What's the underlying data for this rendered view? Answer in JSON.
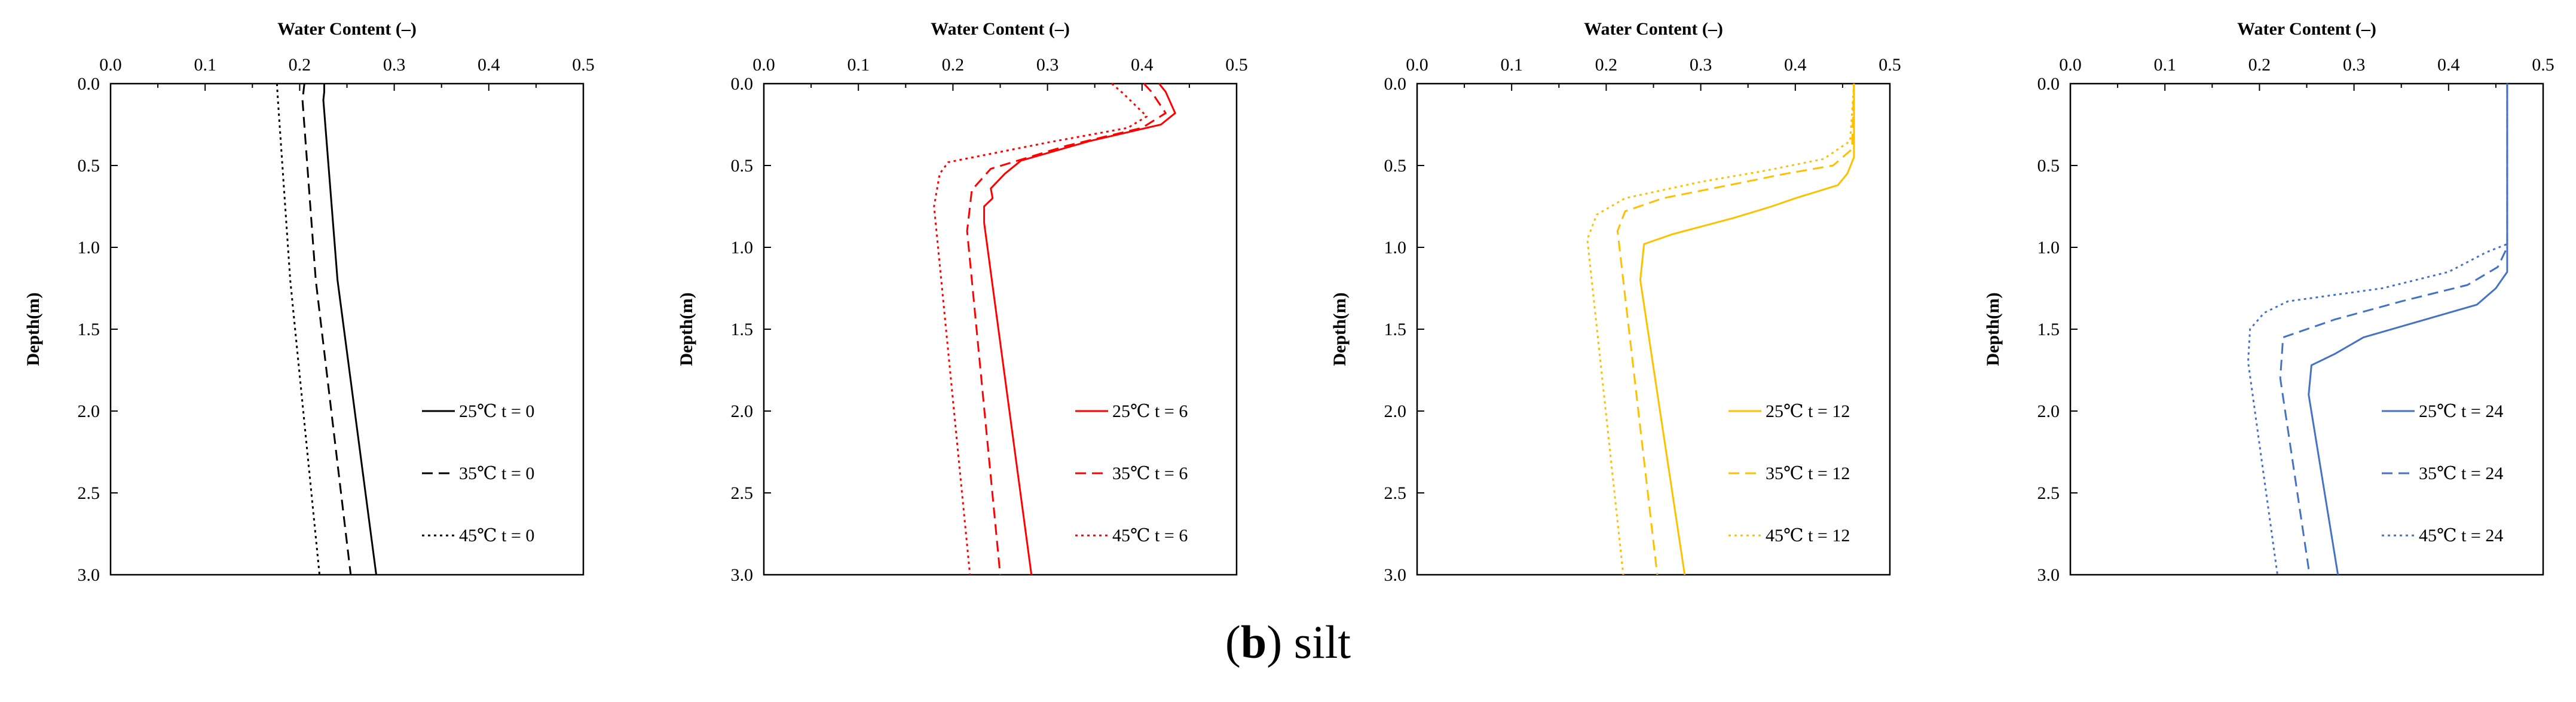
{
  "caption": {
    "letter": "b",
    "text": "silt"
  },
  "chart_data": [
    {
      "type": "line",
      "xlabel": "Water Content (–)",
      "ylabel": "Depth(m)",
      "xlim": [
        0,
        0.5
      ],
      "ylim": [
        0,
        3.0
      ],
      "xticks": [
        "0.0",
        "0.1",
        "0.2",
        "0.3",
        "0.4",
        "0.5"
      ],
      "yticks": [
        "0.0",
        "0.5",
        "1.0",
        "1.5",
        "2.0",
        "2.5",
        "3.0"
      ],
      "color": "#000000",
      "legend_position": "right",
      "series": [
        {
          "name": "25℃  t = 0",
          "style": "solid",
          "points": [
            [
              0.226,
              0.0
            ],
            [
              0.226,
              0.05
            ],
            [
              0.225,
              0.1
            ],
            [
              0.24,
              1.2
            ],
            [
              0.281,
              3.0
            ]
          ]
        },
        {
          "name": "35℃  t = 0",
          "style": "dashed",
          "points": [
            [
              0.205,
              0.0
            ],
            [
              0.203,
              0.1
            ],
            [
              0.217,
              1.2
            ],
            [
              0.254,
              3.0
            ]
          ]
        },
        {
          "name": "45℃  t = 0",
          "style": "dotted",
          "points": [
            [
              0.176,
              0.0
            ],
            [
              0.177,
              0.1
            ],
            [
              0.19,
              1.2
            ],
            [
              0.221,
              3.0
            ]
          ]
        }
      ]
    },
    {
      "type": "line",
      "xlabel": "Water Content (–)",
      "ylabel": "Depth(m)",
      "xlim": [
        0,
        0.5
      ],
      "ylim": [
        0,
        3.0
      ],
      "xticks": [
        "0.0",
        "0.1",
        "0.2",
        "0.3",
        "0.4",
        "0.5"
      ],
      "yticks": [
        "0.0",
        "0.5",
        "1.0",
        "1.5",
        "2.0",
        "2.5",
        "3.0"
      ],
      "color": "#ff0000",
      "legend_position": "right",
      "series": [
        {
          "name": "25℃  t = 6",
          "style": "solid",
          "points": [
            [
              0.418,
              0.0
            ],
            [
              0.425,
              0.05
            ],
            [
              0.435,
              0.18
            ],
            [
              0.42,
              0.25
            ],
            [
              0.345,
              0.35
            ],
            [
              0.272,
              0.47
            ],
            [
              0.255,
              0.55
            ],
            [
              0.24,
              0.64
            ],
            [
              0.242,
              0.7
            ],
            [
              0.233,
              0.75
            ],
            [
              0.233,
              0.85
            ],
            [
              0.283,
              3.0
            ]
          ]
        },
        {
          "name": "35℃  t = 6",
          "style": "dashed",
          "points": [
            [
              0.402,
              0.0
            ],
            [
              0.41,
              0.05
            ],
            [
              0.425,
              0.18
            ],
            [
              0.4,
              0.27
            ],
            [
              0.32,
              0.38
            ],
            [
              0.24,
              0.52
            ],
            [
              0.22,
              0.65
            ],
            [
              0.215,
              0.9
            ],
            [
              0.25,
              3.0
            ]
          ]
        },
        {
          "name": "45℃  t = 6",
          "style": "dotted",
          "points": [
            [
              0.368,
              0.0
            ],
            [
              0.38,
              0.06
            ],
            [
              0.405,
              0.2
            ],
            [
              0.385,
              0.27
            ],
            [
              0.3,
              0.36
            ],
            [
              0.195,
              0.48
            ],
            [
              0.186,
              0.55
            ],
            [
              0.18,
              0.75
            ],
            [
              0.218,
              3.0
            ]
          ]
        }
      ]
    },
    {
      "type": "line",
      "xlabel": "Water Content (–)",
      "ylabel": "Depth(m)",
      "xlim": [
        0,
        0.5
      ],
      "ylim": [
        0,
        3.0
      ],
      "xticks": [
        "0.0",
        "0.1",
        "0.2",
        "0.3",
        "0.4",
        "0.5"
      ],
      "yticks": [
        "0.0",
        "0.5",
        "1.0",
        "1.5",
        "2.0",
        "2.5",
        "3.0"
      ],
      "color": "#ffc000",
      "legend_position": "right",
      "series": [
        {
          "name": "25℃  t = 12",
          "style": "solid",
          "points": [
            [
              0.462,
              0.0
            ],
            [
              0.462,
              0.45
            ],
            [
              0.455,
              0.55
            ],
            [
              0.445,
              0.62
            ],
            [
              0.4,
              0.7
            ],
            [
              0.375,
              0.75
            ],
            [
              0.335,
              0.82
            ],
            [
              0.27,
              0.92
            ],
            [
              0.24,
              0.98
            ],
            [
              0.236,
              1.2
            ],
            [
              0.283,
              3.0
            ]
          ]
        },
        {
          "name": "35℃  t = 12",
          "style": "dashed",
          "points": [
            [
              0.462,
              0.0
            ],
            [
              0.46,
              0.4
            ],
            [
              0.44,
              0.5
            ],
            [
              0.39,
              0.55
            ],
            [
              0.33,
              0.62
            ],
            [
              0.26,
              0.7
            ],
            [
              0.22,
              0.78
            ],
            [
              0.212,
              0.9
            ],
            [
              0.254,
              3.0
            ]
          ]
        },
        {
          "name": "45℃  t = 12",
          "style": "dotted",
          "points": [
            [
              0.462,
              0.0
            ],
            [
              0.458,
              0.35
            ],
            [
              0.43,
              0.46
            ],
            [
              0.37,
              0.53
            ],
            [
              0.3,
              0.6
            ],
            [
              0.22,
              0.7
            ],
            [
              0.19,
              0.8
            ],
            [
              0.18,
              0.95
            ],
            [
              0.218,
              3.0
            ]
          ]
        }
      ]
    },
    {
      "type": "line",
      "xlabel": "Water Content (–)",
      "ylabel": "Depth(m)",
      "xlim": [
        0,
        0.5
      ],
      "ylim": [
        0,
        3.0
      ],
      "xticks": [
        "0.0",
        "0.1",
        "0.2",
        "0.3",
        "0.4",
        "0.5"
      ],
      "yticks": [
        "0.0",
        "0.5",
        "1.0",
        "1.5",
        "2.0",
        "2.5",
        "3.0"
      ],
      "color": "#4472c4",
      "legend_position": "right",
      "series": [
        {
          "name": "25℃  t = 24",
          "style": "solid",
          "points": [
            [
              0.462,
              0.0
            ],
            [
              0.462,
              1.15
            ],
            [
              0.45,
              1.25
            ],
            [
              0.43,
              1.35
            ],
            [
              0.37,
              1.45
            ],
            [
              0.31,
              1.55
            ],
            [
              0.28,
              1.65
            ],
            [
              0.255,
              1.72
            ],
            [
              0.252,
              1.9
            ],
            [
              0.283,
              3.0
            ]
          ]
        },
        {
          "name": "35℃  t = 24",
          "style": "dashed",
          "points": [
            [
              0.462,
              0.0
            ],
            [
              0.462,
              1.0
            ],
            [
              0.452,
              1.12
            ],
            [
              0.42,
              1.23
            ],
            [
              0.35,
              1.33
            ],
            [
              0.28,
              1.44
            ],
            [
              0.225,
              1.55
            ],
            [
              0.222,
              1.8
            ],
            [
              0.253,
              3.0
            ]
          ]
        },
        {
          "name": "45℃  t = 24",
          "style": "dotted",
          "points": [
            [
              0.462,
              0.0
            ],
            [
              0.462,
              0.98
            ],
            [
              0.44,
              1.03
            ],
            [
              0.4,
              1.15
            ],
            [
              0.33,
              1.25
            ],
            [
              0.23,
              1.33
            ],
            [
              0.205,
              1.4
            ],
            [
              0.19,
              1.5
            ],
            [
              0.188,
              1.7
            ],
            [
              0.219,
              3.0
            ]
          ]
        }
      ]
    }
  ]
}
